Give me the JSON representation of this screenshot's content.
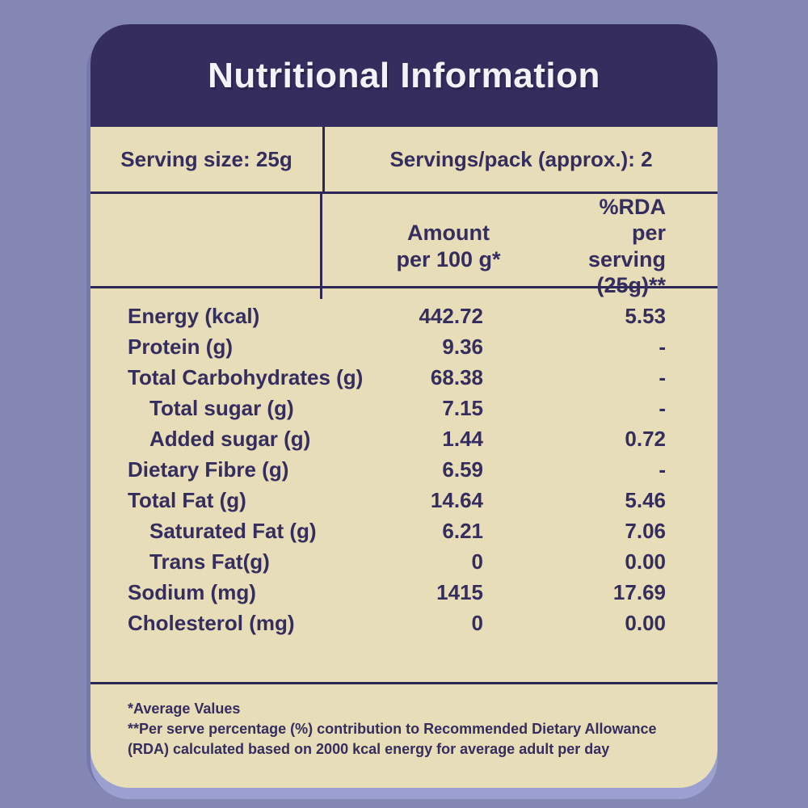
{
  "title": "Nutritional Information",
  "serving": {
    "size": "Serving size: 25g",
    "per_pack": "Servings/pack (approx.): 2"
  },
  "column_headers": {
    "amount": "Amount\nper 100 g*",
    "rda": "%RDA per\nserving\n(25g)**"
  },
  "rows": [
    {
      "label": "Energy (kcal)",
      "amount": "442.72",
      "rda": "5.53",
      "indent": false
    },
    {
      "label": "Protein (g)",
      "amount": "9.36",
      "rda": "-",
      "indent": false
    },
    {
      "label": "Total Carbohydrates (g)",
      "amount": "68.38",
      "rda": "-",
      "indent": false
    },
    {
      "label": "Total sugar (g)",
      "amount": "7.15",
      "rda": "-",
      "indent": true
    },
    {
      "label": "Added sugar (g)",
      "amount": "1.44",
      "rda": "0.72",
      "indent": true
    },
    {
      "label": "Dietary Fibre (g)",
      "amount": "6.59",
      "rda": "-",
      "indent": false
    },
    {
      "label": "Total Fat (g)",
      "amount": "14.64",
      "rda": "5.46",
      "indent": false
    },
    {
      "label": "Saturated Fat (g)",
      "amount": "6.21",
      "rda": "7.06",
      "indent": true
    },
    {
      "label": "Trans Fat(g)",
      "amount": "0",
      "rda": "0.00",
      "indent": true
    },
    {
      "label": "Sodium (mg)",
      "amount": "1415",
      "rda": "17.69",
      "indent": false
    },
    {
      "label": "Cholesterol (mg)",
      "amount": "0",
      "rda": "0.00",
      "indent": false
    }
  ],
  "footnotes": [
    "*Average Values",
    "**Per serve percentage (%) contribution to Recommended Dietary Allowance\n(RDA) calculated based on 2000 kcal energy for average adult per day"
  ],
  "colors": {
    "page_background": "#8487b3",
    "header_background": "#352d5e",
    "panel_background": "#e7ddb8",
    "text": "#352d5e",
    "line": "#2c2757",
    "title_text": "#f4f2f7",
    "card_shadow": "#9ba0d1"
  }
}
